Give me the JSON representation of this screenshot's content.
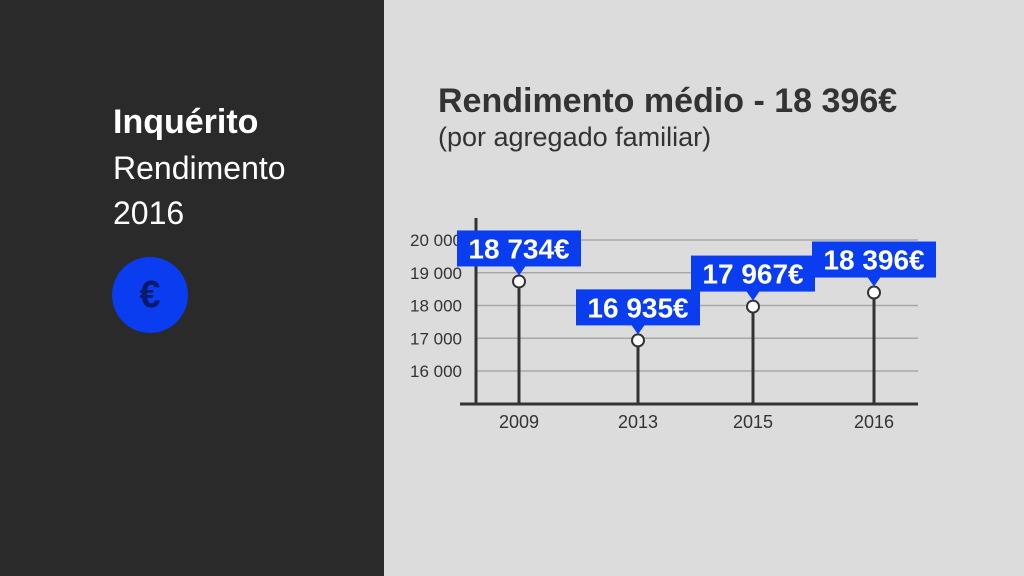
{
  "sidebar": {
    "title": "Inquérito",
    "line1": "Rendimento",
    "line2": "2016",
    "badge_icon": "euro-icon",
    "badge_symbol": "€",
    "badge_color": "#0a3cf0"
  },
  "chart_data": {
    "type": "lollipop",
    "title": "Rendimento médio - 18 396€",
    "subtitle": "(por agregado familiar)",
    "categories": [
      "2009",
      "2013",
      "2015",
      "2016"
    ],
    "values": [
      18734,
      16935,
      17967,
      18396
    ],
    "value_labels": [
      "18 734€",
      "16 935€",
      "17 967€",
      "18 396€"
    ],
    "yticks": [
      16000,
      17000,
      18000,
      19000,
      20000
    ],
    "ytick_labels": [
      "16 000",
      "17 000",
      "18 000",
      "19 000",
      "20 000"
    ],
    "ylim": [
      15000,
      20500
    ],
    "xlabel": "",
    "ylabel": "",
    "grid": true,
    "label_color": "#0a3cf0"
  }
}
